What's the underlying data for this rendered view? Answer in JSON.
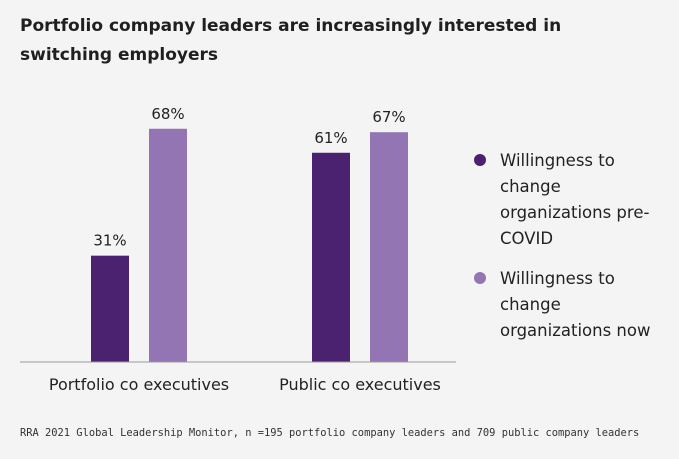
{
  "chart_data": {
    "type": "bar",
    "title": "Portfolio company leaders are increasingly interested in switching employers",
    "categories": [
      "Portfolio co executives",
      "Public co executives"
    ],
    "series": [
      {
        "name": "Willingness to change organizations pre-COVID",
        "values": [
          31,
          61
        ],
        "labels": [
          "31%",
          "61%"
        ],
        "color": "#4a2270"
      },
      {
        "name": "Willingness to change organizations now",
        "values": [
          68,
          67
        ],
        "labels": [
          "68%",
          "67%"
        ],
        "color": "#9475b4"
      }
    ],
    "xlabel": "",
    "ylabel": "",
    "ylim": [
      0,
      100
    ],
    "grid": false,
    "legend_position": "right"
  },
  "source": "RRA 2021 Global Leadership Monitor, n =195 portfolio company leaders and 709 public company leaders"
}
